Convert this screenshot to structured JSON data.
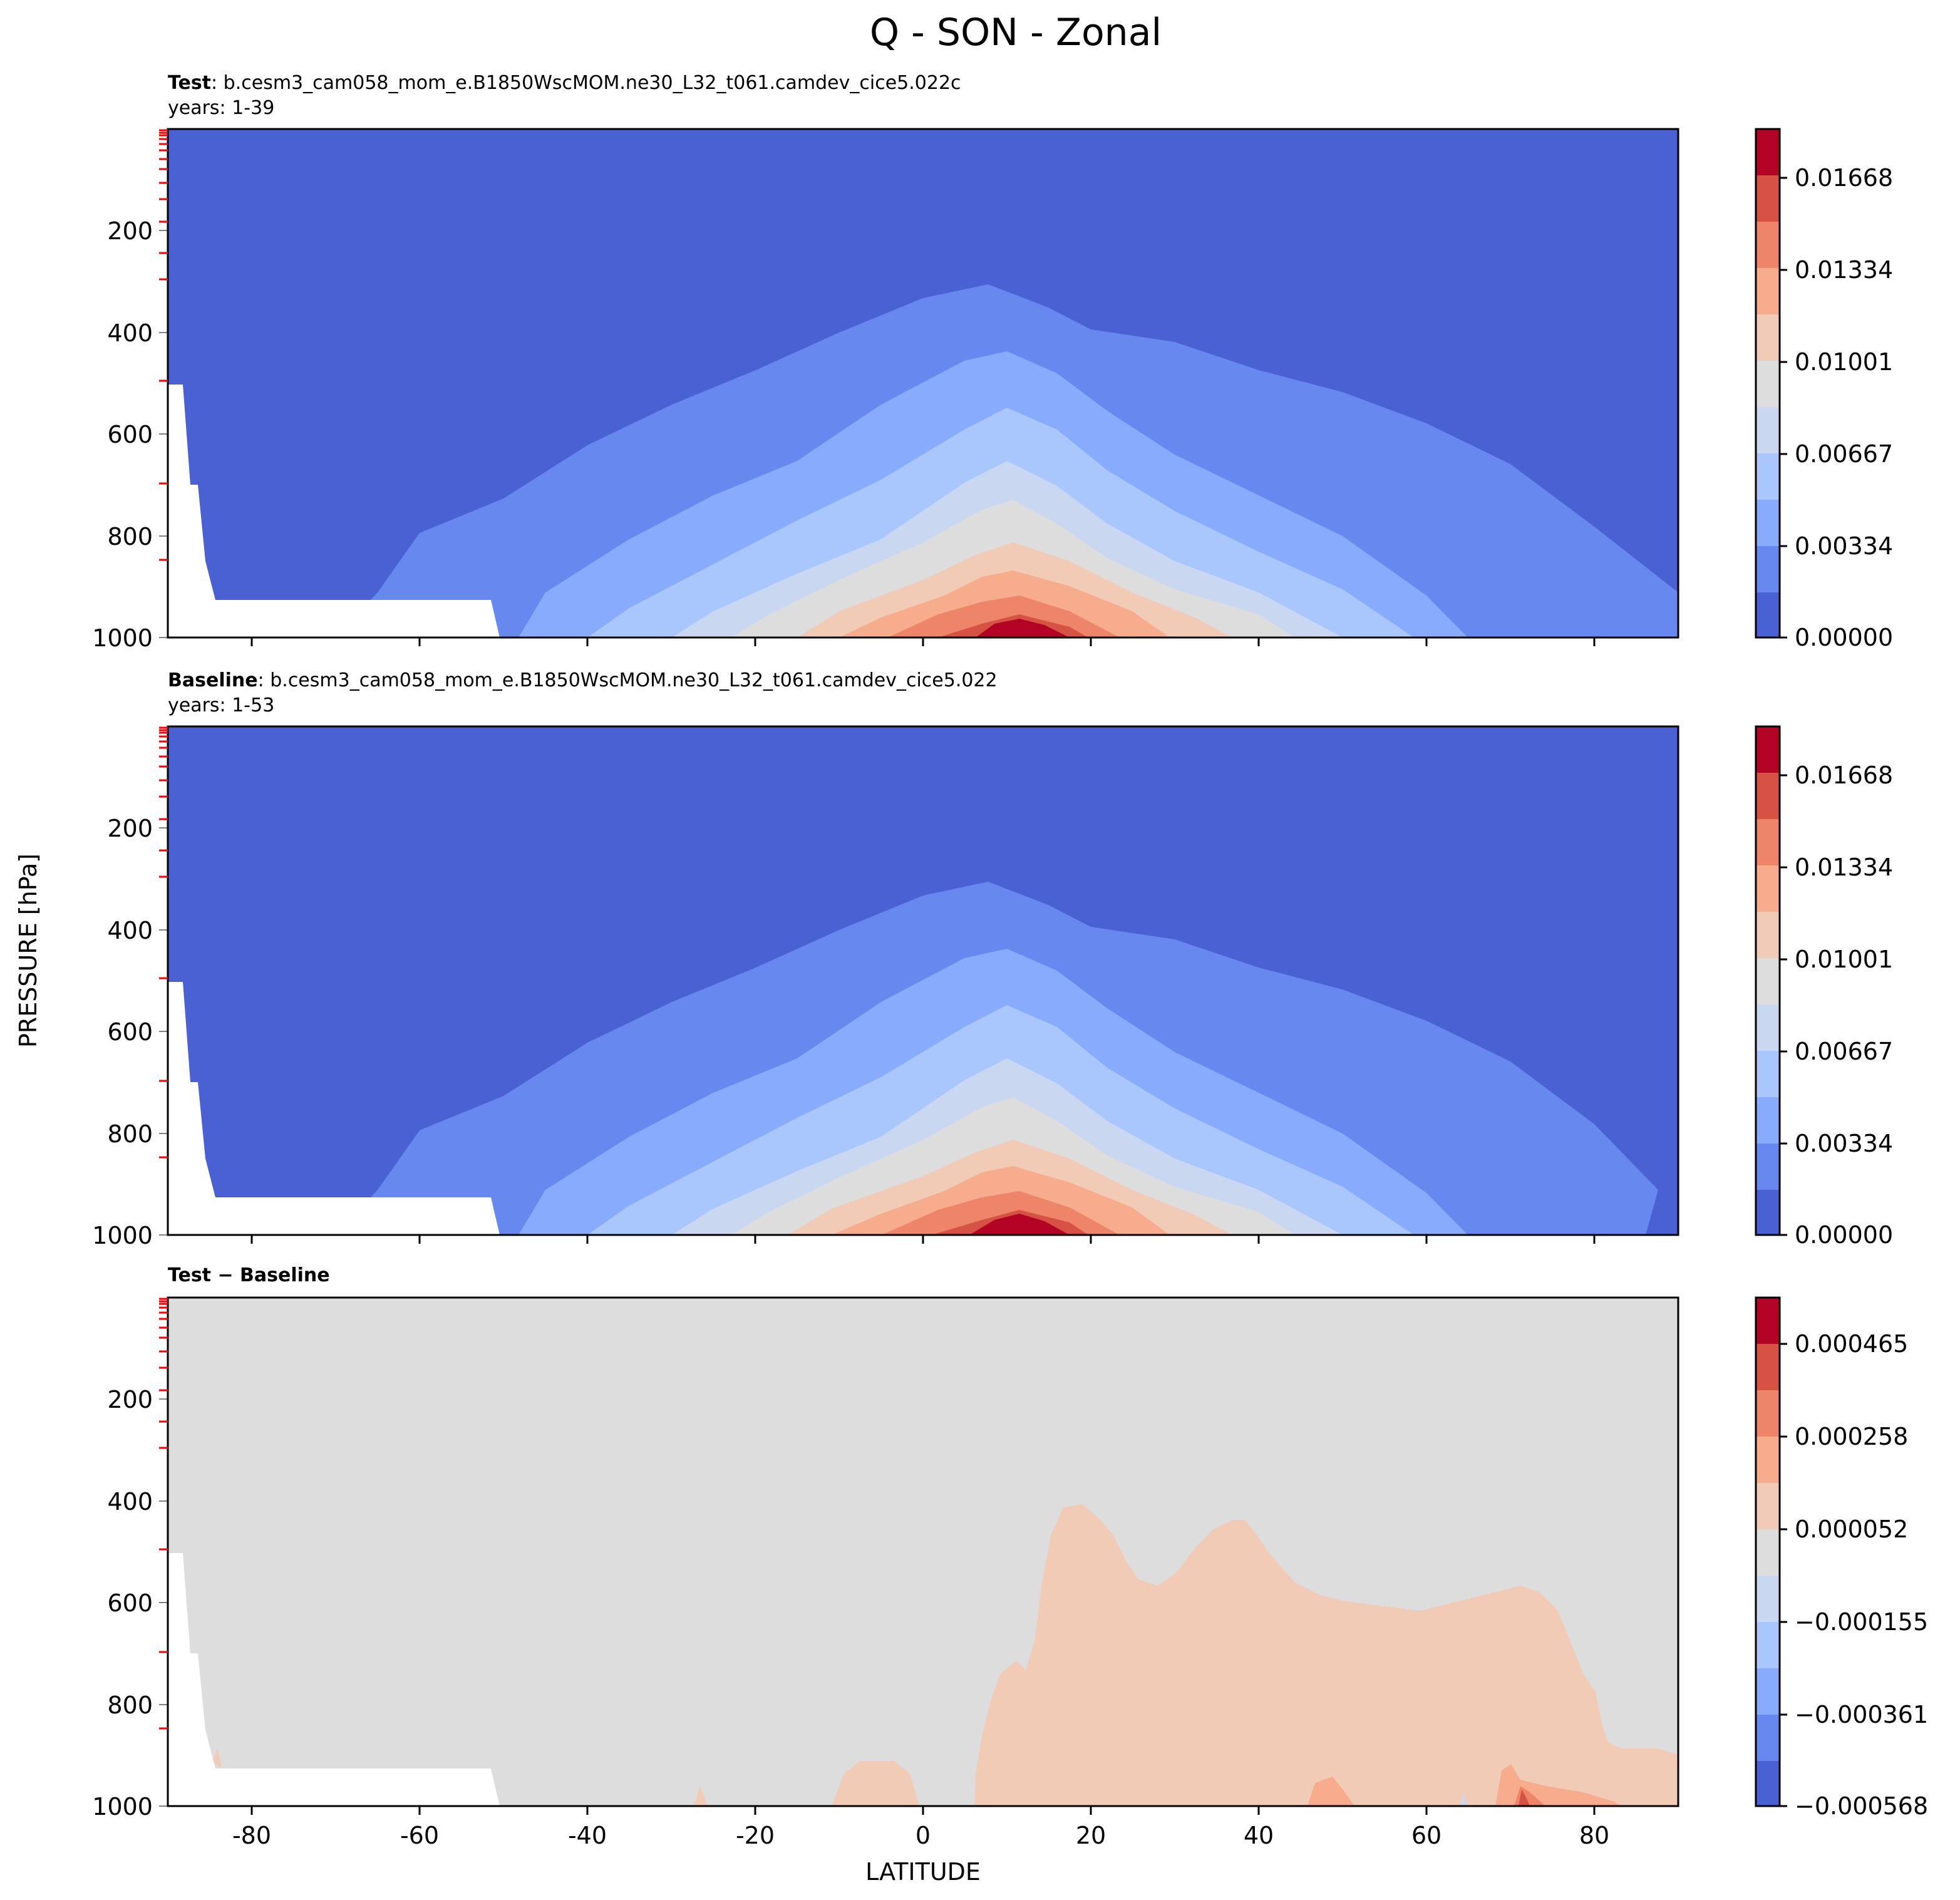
{
  "figure": {
    "title": "Q - SON - Zonal",
    "ylabel": "PRESSURE [hPa]",
    "xlabel": "LATITUDE"
  },
  "chart_data": [
    {
      "type": "contour",
      "panel": "test",
      "title_bold": "Test",
      "title_rest": ":  b.cesm3_cam058_mom_e.B1850WscMOM.ne30_L32_t061.camdev_cice5.022c",
      "subtitle": "years: 1-39",
      "xlim": [
        -90,
        90
      ],
      "ylim": [
        1000,
        0
      ],
      "x_ticks": [
        -80,
        -60,
        -40,
        -20,
        0,
        20,
        40,
        60,
        80
      ],
      "y_ticks": [
        200,
        400,
        600,
        800,
        1000
      ],
      "colorbar_ticks": [
        "0.01668",
        "0.01334",
        "0.01001",
        "0.00667",
        "0.00334",
        "0.00000"
      ],
      "levels": [
        0.0,
        0.00167,
        0.00334,
        0.005,
        0.00667,
        0.00834,
        0.01001,
        0.01167,
        0.01334,
        0.01501,
        0.01668,
        0.01835
      ],
      "colors": [
        "#4961d2",
        "#6788ee",
        "#88abfd",
        "#aac7fd",
        "#c9d7f0",
        "#dddddd",
        "#f2cbb7",
        "#f7ac8e",
        "#ee8468",
        "#d65244",
        "#b40426"
      ]
    },
    {
      "type": "contour",
      "panel": "baseline",
      "title_bold": "Baseline",
      "title_rest": ":  b.cesm3_cam058_mom_e.B1850WscMOM.ne30_L32_t061.camdev_cice5.022",
      "subtitle": "years: 1-53",
      "xlim": [
        -90,
        90
      ],
      "ylim": [
        1000,
        0
      ],
      "x_ticks": [
        -80,
        -60,
        -40,
        -20,
        0,
        20,
        40,
        60,
        80
      ],
      "y_ticks": [
        200,
        400,
        600,
        800,
        1000
      ],
      "colorbar_ticks": [
        "0.01668",
        "0.01334",
        "0.01001",
        "0.00667",
        "0.00334",
        "0.00000"
      ],
      "levels": [
        0.0,
        0.00167,
        0.00334,
        0.005,
        0.00667,
        0.00834,
        0.01001,
        0.01167,
        0.01334,
        0.01501,
        0.01668,
        0.01835
      ],
      "colors": [
        "#4961d2",
        "#6788ee",
        "#88abfd",
        "#aac7fd",
        "#c9d7f0",
        "#dddddd",
        "#f2cbb7",
        "#f7ac8e",
        "#ee8468",
        "#d65244",
        "#b40426"
      ]
    },
    {
      "type": "contour",
      "panel": "difference",
      "title_bold": "Test − Baseline",
      "title_rest": "",
      "subtitle": "",
      "xlim": [
        -90,
        90
      ],
      "ylim": [
        1000,
        0
      ],
      "x_ticks": [
        -80,
        -60,
        -40,
        -20,
        0,
        20,
        40,
        60,
        80
      ],
      "y_ticks": [
        200,
        400,
        600,
        800,
        1000
      ],
      "colorbar_ticks": [
        "0.000465",
        "0.000258",
        "0.000052",
        "−0.000155",
        "−0.000361",
        "−0.000568"
      ],
      "levels": [
        -0.000568,
        -0.000465,
        -0.000361,
        -0.000258,
        -0.000155,
        -5.2e-05,
        5.2e-05,
        0.000155,
        0.000258,
        0.000361,
        0.000465,
        0.000568
      ],
      "colors": [
        "#4961d2",
        "#6788ee",
        "#88abfd",
        "#aac7fd",
        "#c9d7f0",
        "#dddddd",
        "#f2cbb7",
        "#f7ac8e",
        "#ee8468",
        "#d65244",
        "#b40426"
      ]
    }
  ]
}
